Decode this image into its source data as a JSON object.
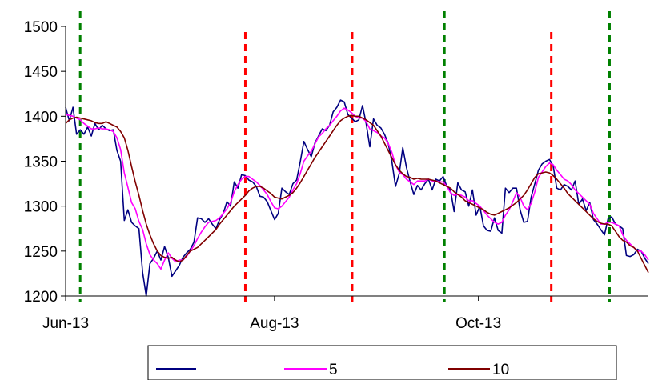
{
  "chart_data": {
    "type": "line",
    "title": "",
    "xlabel": "",
    "ylabel": "",
    "ylim": [
      1200,
      1500
    ],
    "y_ticks": [
      "1200",
      "1250",
      "1300",
      "1350",
      "1400",
      "1450",
      "1500"
    ],
    "x_ticks": [
      {
        "label": "Jun-13",
        "x": 0
      },
      {
        "label": "Aug-13",
        "x": 43
      },
      {
        "label": "Oct-13",
        "x": 85
      }
    ],
    "x_range": [
      0,
      120
    ],
    "grid": false,
    "legend_position": "bottom",
    "series": [
      {
        "name": "",
        "color": "#000080",
        "values": [
          1410,
          1395,
          1410,
          1380,
          1385,
          1380,
          1388,
          1378,
          1392,
          1385,
          1390,
          1386,
          1384,
          1385,
          1362,
          1350,
          1284,
          1296,
          1282,
          1278,
          1275,
          1226,
          1200,
          1236,
          1242,
          1250,
          1240,
          1255,
          1243,
          1222,
          1228,
          1234,
          1243,
          1248,
          1252,
          1260,
          1287,
          1286,
          1282,
          1286,
          1280,
          1275,
          1285,
          1292,
          1305,
          1300,
          1327,
          1320,
          1335,
          1334,
          1329,
          1327,
          1322,
          1311,
          1310,
          1305,
          1295,
          1285,
          1292,
          1320,
          1316,
          1313,
          1325,
          1329,
          1349,
          1372,
          1363,
          1355,
          1370,
          1378,
          1386,
          1384,
          1390,
          1405,
          1410,
          1418,
          1416,
          1402,
          1398,
          1394,
          1396,
          1412,
          1392,
          1366,
          1397,
          1390,
          1387,
          1380,
          1370,
          1350,
          1322,
          1336,
          1365,
          1343,
          1327,
          1313,
          1323,
          1318,
          1325,
          1330,
          1318,
          1330,
          1328,
          1333,
          1322,
          1318,
          1294,
          1326,
          1318,
          1316,
          1300,
          1318,
          1290,
          1300,
          1278,
          1273,
          1272,
          1287,
          1273,
          1270,
          1320,
          1315,
          1320,
          1320,
          1296,
          1282,
          1283,
          1310,
          1325,
          1340,
          1347,
          1350,
          1352,
          1345,
          1320,
          1318,
          1324,
          1322,
          1318,
          1328,
          1302,
          1308,
          1295,
          1304,
          1285,
          1280,
          1274,
          1268,
          1286,
          1288,
          1280,
          1278,
          1275,
          1245,
          1244,
          1246,
          1252,
          1250,
          1242,
          1236
        ]
      },
      {
        "name": "5",
        "color": "#ff00ff",
        "values": [
          1402,
          1401,
          1400,
          1398,
          1396,
          1392,
          1389,
          1386,
          1386,
          1387,
          1386,
          1386,
          1385,
          1383,
          1376,
          1363,
          1337,
          1321,
          1304,
          1297,
          1283,
          1274,
          1258,
          1246,
          1240,
          1236,
          1230,
          1240,
          1248,
          1242,
          1238,
          1240,
          1240,
          1244,
          1250,
          1256,
          1264,
          1271,
          1277,
          1282,
          1283,
          1284,
          1287,
          1292,
          1297,
          1304,
          1316,
          1324,
          1330,
          1333,
          1333,
          1330,
          1327,
          1323,
          1318,
          1313,
          1305,
          1298,
          1297,
          1300,
          1305,
          1310,
          1318,
          1325,
          1336,
          1350,
          1356,
          1361,
          1369,
          1377,
          1381,
          1386,
          1390,
          1395,
          1400,
          1406,
          1409,
          1407,
          1404,
          1400,
          1398,
          1398,
          1394,
          1386,
          1384,
          1382,
          1378,
          1376,
          1370,
          1360,
          1346,
          1338,
          1335,
          1330,
          1327,
          1324,
          1328,
          1328,
          1328,
          1330,
          1328,
          1328,
          1327,
          1327,
          1322,
          1315,
          1312,
          1313,
          1312,
          1310,
          1306,
          1306,
          1303,
          1300,
          1295,
          1290,
          1286,
          1282,
          1280,
          1282,
          1290,
          1296,
          1305,
          1315,
          1310,
          1300,
          1296,
          1303,
          1316,
          1332,
          1338,
          1344,
          1348,
          1346,
          1340,
          1335,
          1330,
          1328,
          1324,
          1318,
          1314,
          1310,
          1306,
          1302,
          1292,
          1286,
          1280,
          1280,
          1282,
          1282,
          1280,
          1278,
          1268,
          1262,
          1258,
          1254,
          1250,
          1250,
          1246,
          1240
        ]
      },
      {
        "name": "10",
        "color": "#800000",
        "values": [
          1392,
          1396,
          1398,
          1399,
          1398,
          1397,
          1396,
          1395,
          1393,
          1392,
          1392,
          1394,
          1392,
          1390,
          1388,
          1383,
          1376,
          1362,
          1344,
          1327,
          1312,
          1295,
          1280,
          1268,
          1258,
          1250,
          1245,
          1243,
          1242,
          1243,
          1240,
          1238,
          1240,
          1245,
          1250,
          1252,
          1254,
          1258,
          1262,
          1266,
          1270,
          1274,
          1280,
          1285,
          1290,
          1295,
          1300,
          1304,
          1308,
          1312,
          1317,
          1320,
          1322,
          1322,
          1320,
          1317,
          1314,
          1310,
          1309,
          1308,
          1310,
          1312,
          1315,
          1320,
          1326,
          1333,
          1340,
          1347,
          1354,
          1360,
          1366,
          1372,
          1378,
          1384,
          1390,
          1395,
          1398,
          1400,
          1401,
          1400,
          1400,
          1398,
          1396,
          1393,
          1390,
          1384,
          1378,
          1370,
          1362,
          1354,
          1346,
          1340,
          1336,
          1333,
          1332,
          1330,
          1331,
          1330,
          1330,
          1330,
          1329,
          1328,
          1326,
          1324,
          1322,
          1320,
          1316,
          1313,
          1310,
          1306,
          1304,
          1302,
          1300,
          1298,
          1296,
          1293,
          1291,
          1290,
          1292,
          1294,
          1296,
          1298,
          1301,
          1304,
          1308,
          1312,
          1318,
          1325,
          1332,
          1336,
          1337,
          1338,
          1337,
          1334,
          1330,
          1325,
          1320,
          1314,
          1310,
          1306,
          1302,
          1298,
          1294,
          1290,
          1286,
          1283,
          1281,
          1280,
          1280,
          1278,
          1272,
          1266,
          1262,
          1260,
          1256,
          1254,
          1250,
          1242,
          1234,
          1226
        ]
      }
    ],
    "vlines": [
      {
        "x": 3,
        "color": "#008000"
      },
      {
        "x": 37,
        "color": "#ff0000"
      },
      {
        "x": 59,
        "color": "#ff0000"
      },
      {
        "x": 78,
        "color": "#008000"
      },
      {
        "x": 100,
        "color": "#ff0000"
      },
      {
        "x": 112,
        "color": "#008000"
      }
    ]
  }
}
